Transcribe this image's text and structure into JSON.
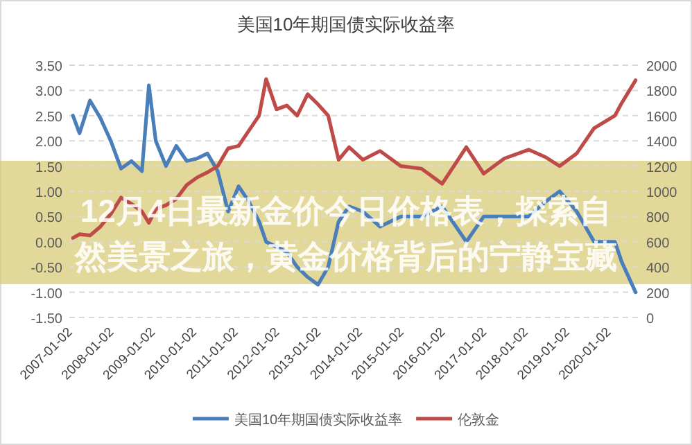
{
  "chart_data": {
    "type": "line",
    "title": "美国10年期国债实际收益率",
    "annotations": [
      "12月4日最新金价今日价格表，探索自然美景之旅，黄金价格背后的宁静宝藏"
    ],
    "x": [
      "2007-01-02",
      "2007-03-01",
      "2007-06-01",
      "2007-09-01",
      "2007-12-01",
      "2008-03-01",
      "2008-06-01",
      "2008-09-01",
      "2008-11-01",
      "2009-01-01",
      "2009-04-01",
      "2009-07-01",
      "2009-10-01",
      "2010-01-01",
      "2010-04-01",
      "2010-07-01",
      "2010-10-01",
      "2011-01-01",
      "2011-04-01",
      "2011-07-01",
      "2011-09-01",
      "2011-12-01",
      "2012-03-01",
      "2012-06-01",
      "2012-09-01",
      "2012-12-01",
      "2013-03-01",
      "2013-06-01",
      "2013-09-01",
      "2014-01-01",
      "2014-06-01",
      "2014-12-01",
      "2015-06-01",
      "2015-12-01",
      "2016-07-01",
      "2016-12-01",
      "2017-06-01",
      "2018-01-01",
      "2018-06-01",
      "2018-10-01",
      "2019-03-01",
      "2019-08-01",
      "2020-02-01",
      "2020-04-01",
      "2020-08-01"
    ],
    "series": [
      {
        "name": "美国10年期国债实际收益率",
        "color": "#4a7ebb",
        "values": [
          2.5,
          2.15,
          2.8,
          2.45,
          2.0,
          1.45,
          1.6,
          1.4,
          3.1,
          2.0,
          1.5,
          1.9,
          1.6,
          1.65,
          1.75,
          1.4,
          0.6,
          1.1,
          0.8,
          0.4,
          0.0,
          -0.1,
          -0.2,
          -0.5,
          -0.7,
          -0.85,
          -0.5,
          0.4,
          0.7,
          0.6,
          0.3,
          0.5,
          0.5,
          0.7,
          0.0,
          0.5,
          0.5,
          0.5,
          0.8,
          1.0,
          0.6,
          0.0,
          0.0,
          -0.4,
          -1.0
        ]
      },
      {
        "name": "伦敦金",
        "color": "#be4b48",
        "axis": "y2",
        "values": [
          630,
          660,
          650,
          720,
          820,
          950,
          900,
          840,
          750,
          860,
          890,
          940,
          1050,
          1110,
          1150,
          1200,
          1340,
          1360,
          1480,
          1600,
          1890,
          1650,
          1680,
          1600,
          1770,
          1690,
          1600,
          1250,
          1350,
          1250,
          1320,
          1200,
          1180,
          1060,
          1350,
          1140,
          1260,
          1330,
          1270,
          1200,
          1300,
          1500,
          1600,
          1700,
          1880
        ]
      }
    ],
    "xlim": [
      "2006-12-01",
      "2020-09-15"
    ],
    "xticks": [
      "2007-01-02",
      "2008-01-02",
      "2009-01-02",
      "2010-01-02",
      "2011-01-02",
      "2012-01-02",
      "2013-01-02",
      "2014-01-02",
      "2015-01-02",
      "2016-01-02",
      "2017-01-02",
      "2018-01-02",
      "2019-01-02",
      "2020-01-02"
    ],
    "ylim": [
      -1.5,
      3.5
    ],
    "yticks": [
      {
        "value": 3.5,
        "label": "3.50"
      },
      {
        "value": 3.0,
        "label": "3.00"
      },
      {
        "value": 2.5,
        "label": "2.50"
      },
      {
        "value": 2.0,
        "label": "2.00"
      },
      {
        "value": 1.5,
        "label": "1.50"
      },
      {
        "value": 1.0,
        "label": "1.00"
      },
      {
        "value": 0.5,
        "label": "0.50"
      },
      {
        "value": 0,
        "label": "0.00"
      },
      {
        "value": -0.5,
        "label": "-0.50"
      },
      {
        "value": -1.0,
        "label": "-1.00"
      },
      {
        "value": -1.5,
        "label": "-1.50"
      }
    ],
    "y2lim": [
      0,
      2000
    ],
    "y2ticks": [
      2000,
      1800,
      1600,
      1400,
      1200,
      1000,
      800,
      600,
      400,
      200,
      0
    ],
    "grid": "y",
    "legend": "bottom",
    "line_style": "solid"
  }
}
